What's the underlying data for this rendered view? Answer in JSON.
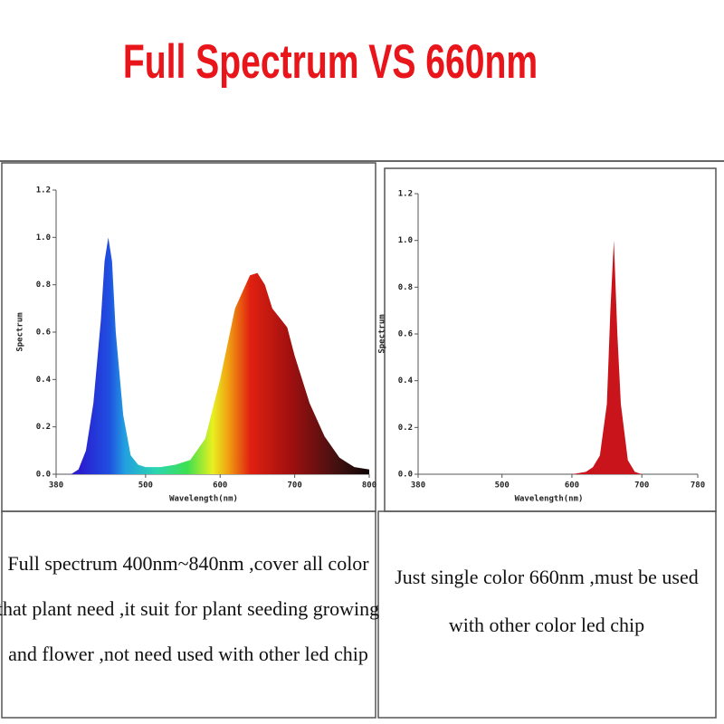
{
  "header": {
    "title": "Full Spectrum VS 660nm"
  },
  "chart_data": [
    {
      "type": "area",
      "fill": "spectrum",
      "xlabel": "Wavelength(nm)",
      "ylabel": "Spectrum",
      "x": [
        380,
        400,
        410,
        420,
        430,
        440,
        445,
        450,
        455,
        460,
        470,
        480,
        490,
        500,
        520,
        540,
        560,
        580,
        600,
        620,
        640,
        650,
        660,
        670,
        680,
        690,
        700,
        720,
        740,
        760,
        780,
        800
      ],
      "values": [
        0,
        0,
        0.02,
        0.1,
        0.3,
        0.65,
        0.9,
        1.0,
        0.9,
        0.6,
        0.25,
        0.08,
        0.04,
        0.03,
        0.03,
        0.04,
        0.06,
        0.15,
        0.4,
        0.7,
        0.84,
        0.85,
        0.8,
        0.7,
        0.66,
        0.62,
        0.5,
        0.3,
        0.16,
        0.07,
        0.03,
        0.02
      ],
      "xlim": [
        380,
        800
      ],
      "xticks": [
        380,
        500,
        600,
        700,
        800
      ],
      "ylim": [
        0,
        1.2
      ],
      "yticks": [
        {
          "value": 0,
          "label": "0.0"
        },
        0.2,
        0.4,
        0.6,
        0.8,
        {
          "value": 1,
          "label": "1.0"
        },
        1.2
      ]
    },
    {
      "type": "area",
      "color": "#c8141a",
      "xlabel": "Wavelength(nm)",
      "ylabel": "Spectrum",
      "x": [
        380,
        600,
        620,
        630,
        640,
        650,
        655,
        660,
        665,
        670,
        680,
        690,
        700,
        780
      ],
      "values": [
        0,
        0,
        0.01,
        0.03,
        0.08,
        0.3,
        0.7,
        1.0,
        0.6,
        0.3,
        0.06,
        0.01,
        0,
        0
      ],
      "xlim": [
        380,
        780
      ],
      "xticks": [
        380,
        500,
        600,
        700,
        780
      ],
      "ylim": [
        0,
        1.2
      ],
      "yticks": [
        {
          "value": 0,
          "label": "0.0"
        },
        0.2,
        0.4,
        0.6,
        0.8,
        {
          "value": 1,
          "label": "1.0"
        },
        1.2
      ]
    }
  ],
  "descriptions": [
    {
      "lines": [
        "Full spectrum 400nm~840nm ,cover all color",
        "that plant need ,it suit for plant seeding growing",
        "and flower ,not need used with other led chip"
      ]
    },
    {
      "lines": [
        "Just single color 660nm ,must be used",
        "with other color led chip"
      ]
    }
  ]
}
